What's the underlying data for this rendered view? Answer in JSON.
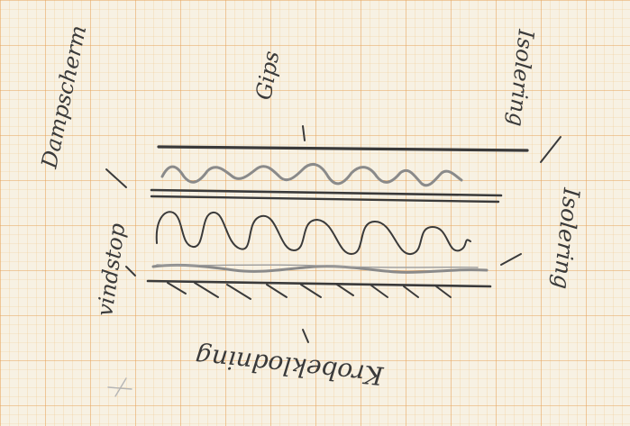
{
  "sheet": {
    "paper_color": "#f7f1e3",
    "grid_minor_color": "#f0c98f",
    "grid_major_color": "#e6a35a",
    "ink_color": "#3a3a3a",
    "pencil_color": "#8a8a8a"
  },
  "labels": {
    "top_left": "Dampscherm",
    "top_center": "Gips",
    "top_right": "Isolering",
    "right": "Isolering",
    "left": "vindstop",
    "bottom": "Krobeklodning"
  }
}
